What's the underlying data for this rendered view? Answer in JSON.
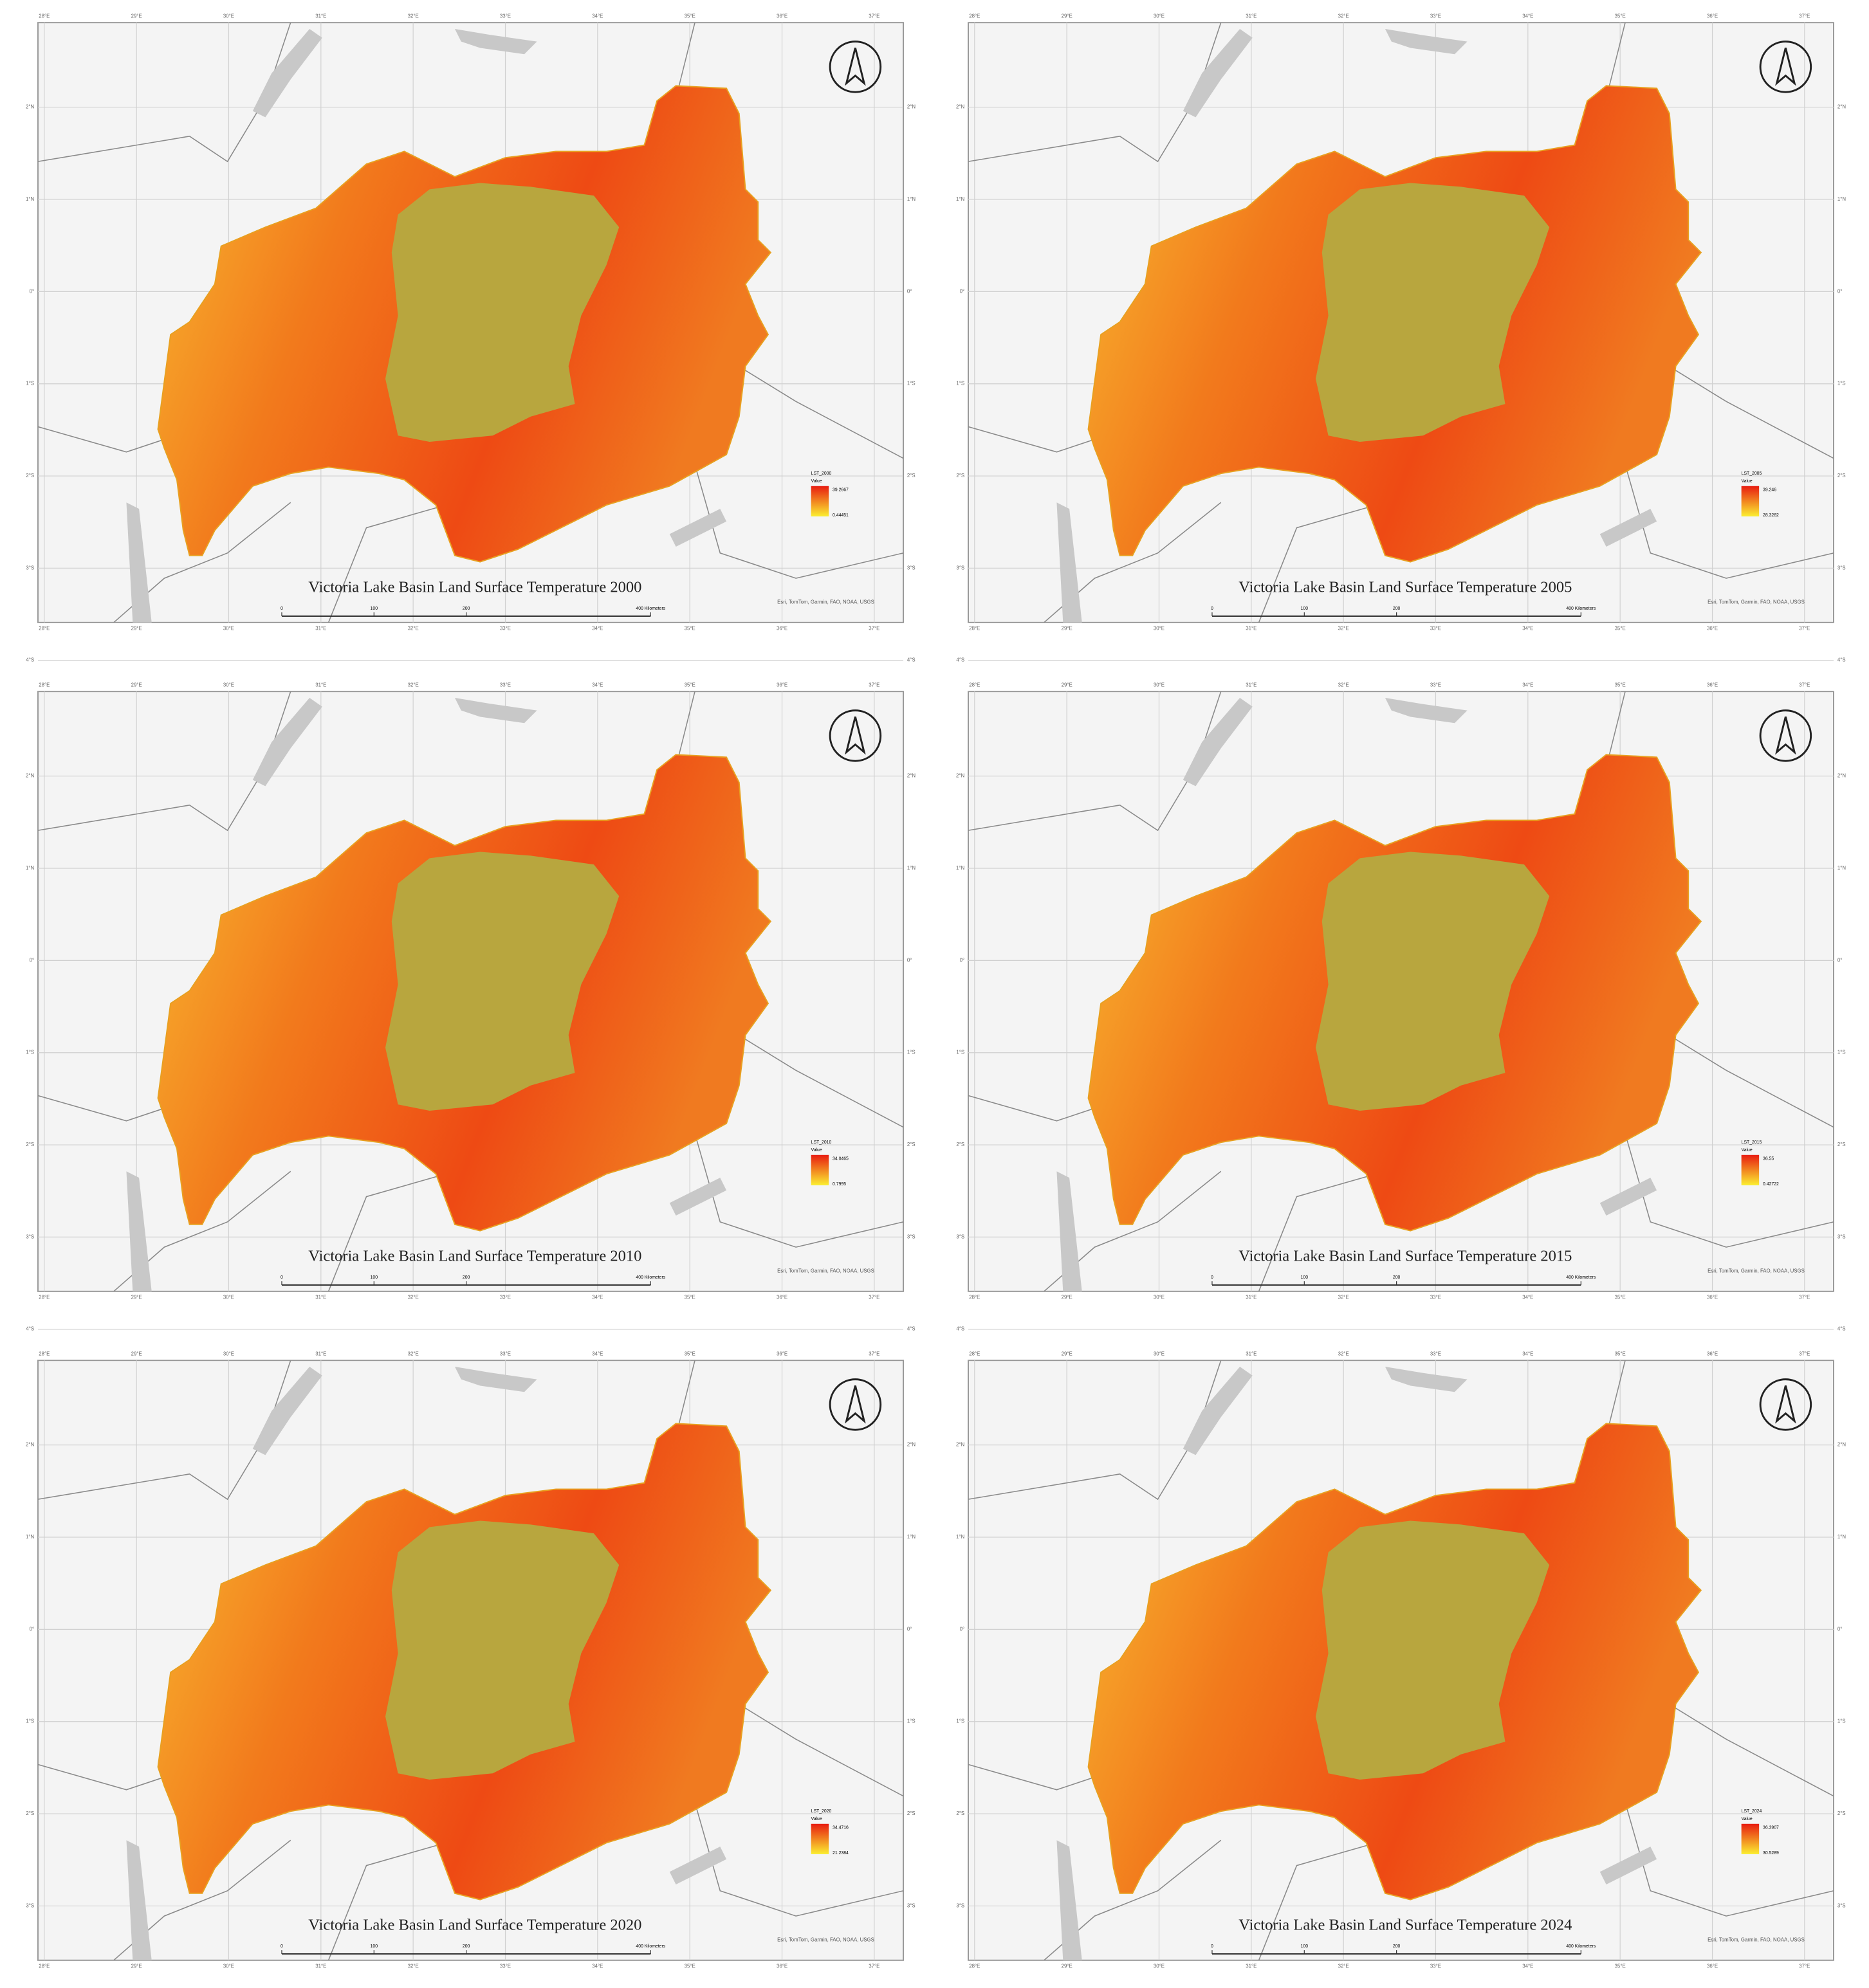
{
  "map": {
    "lon_labels": [
      "28°E",
      "29°E",
      "30°E",
      "31°E",
      "32°E",
      "33°E",
      "34°E",
      "35°E",
      "36°E",
      "37°E"
    ],
    "lat_labels": [
      "2°N",
      "1°N",
      "0°",
      "1°S",
      "2°S",
      "3°S",
      "4°S"
    ],
    "scale_labels": [
      "0",
      "100",
      "200",
      "400 Kilometers"
    ],
    "credits": "Esri, TomTom, Garmin, FAO, NOAA, USGS"
  },
  "panels": [
    {
      "title": "Victoria Lake Basin Land Surface Temperature 2000",
      "legend": {
        "title": "LST_2000",
        "label": "Value",
        "high": "39.2667",
        "low": "0.44451"
      }
    },
    {
      "title": "Victoria Lake Basin Land Surface Temperature 2005",
      "legend": {
        "title": "LST_2005",
        "label": "Value",
        "high": "39.246",
        "low": "28.3282"
      }
    },
    {
      "title": "Victoria Lake Basin Land Surface Temperature 2010",
      "legend": {
        "title": "LST_2010",
        "label": "Value",
        "high": "34.0465",
        "low": "0.7995"
      }
    },
    {
      "title": "Victoria Lake Basin Land Surface Temperature 2015",
      "legend": {
        "title": "LST_2015",
        "label": "Value",
        "high": "36.55",
        "low": "0.42722"
      }
    },
    {
      "title": "Victoria Lake Basin Land Surface Temperature 2020",
      "legend": {
        "title": "LST_2020",
        "label": "Value",
        "high": "34.4716",
        "low": "21.2384"
      }
    },
    {
      "title": "Victoria Lake Basin Land Surface Temperature 2024",
      "legend": {
        "title": "LST_2024",
        "label": "Value",
        "high": "36.3907",
        "low": "30.5289"
      }
    }
  ]
}
